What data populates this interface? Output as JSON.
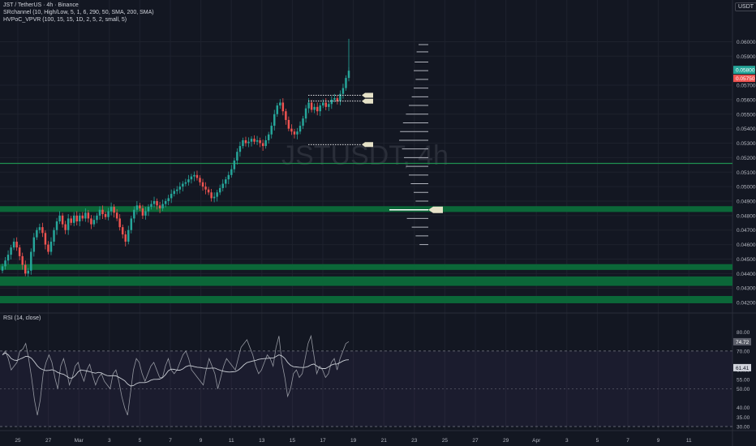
{
  "header": {
    "symbol_line": "JST / TetherUS · 4h · Binance",
    "indicator_1": "SRchannel (10, High/Low, 5, 1, 6, 290, 50, SMA, 200, SMA)",
    "indicator_2": "HVPoC_VPVR (100, 15, 15, 1D, 2, 5, 2, small, 5)"
  },
  "currency_badge": "USDT",
  "watermark": "JSTUSDT, 4h",
  "price_axis": {
    "labels": [
      "0.06000",
      "0.05900",
      "0.05700",
      "0.05600",
      "0.05500",
      "0.05400",
      "0.05300",
      "0.05200",
      "0.05100",
      "0.05000",
      "0.04900",
      "0.04800",
      "0.04700",
      "0.04600",
      "0.04500",
      "0.04400",
      "0.04300",
      "0.04200"
    ],
    "last_price_tag": "0.05800",
    "last_price_tag_2": "0.05750"
  },
  "rsi": {
    "label": "RSI (14, close)",
    "axis_labels": [
      "80.00",
      "70.00",
      "60.00",
      "55.00",
      "50.00",
      "40.00",
      "35.00",
      "30.00"
    ],
    "value_tag_1": "74.72",
    "value_tag_2": "61.41"
  },
  "time_axis": {
    "labels": [
      "25",
      "27",
      "Mar",
      "3",
      "5",
      "7",
      "9",
      "11",
      "13",
      "15",
      "17",
      "19",
      "21",
      "23",
      "25",
      "27",
      "29",
      "Apr",
      "3",
      "5",
      "7",
      "9",
      "11"
    ]
  },
  "colors": {
    "background": "#131722",
    "up_candle": "#26a69a",
    "down_candle": "#ef5350",
    "sr_zone": "#0b6b3a",
    "sr_line": "#1f8f4f",
    "rsi_line": "#9598a1",
    "rsi_ma": "#c9cdd4",
    "price_tag_up": "#26a69a",
    "price_tag_down": "#ef5350"
  },
  "chart_data": {
    "type": "candlestick",
    "price_range": [
      0.0415,
      0.0612
    ],
    "sr_zones": [
      [
        0.04825,
        0.04865
      ],
      [
        0.04425,
        0.04465
      ],
      [
        0.04315,
        0.0438
      ],
      [
        0.04195,
        0.04245
      ]
    ],
    "sr_lines": [
      0.0516
    ],
    "close_path": [
      0.0445,
      0.0449,
      0.0453,
      0.0458,
      0.0462,
      0.0458,
      0.0452,
      0.0446,
      0.044,
      0.0442,
      0.0455,
      0.0465,
      0.047,
      0.0472,
      0.0468,
      0.046,
      0.0455,
      0.0462,
      0.047,
      0.0476,
      0.048,
      0.0474,
      0.047,
      0.0478,
      0.0475,
      0.048,
      0.0476,
      0.048,
      0.0478,
      0.0482,
      0.0478,
      0.0474,
      0.0477,
      0.048,
      0.0484,
      0.0481,
      0.0479,
      0.0483,
      0.0486,
      0.0482,
      0.0478,
      0.0472,
      0.0467,
      0.0462,
      0.047,
      0.0478,
      0.0484,
      0.0487,
      0.0485,
      0.048,
      0.0483,
      0.0486,
      0.0488,
      0.049,
      0.0487,
      0.0485,
      0.0488,
      0.049,
      0.0492,
      0.0495,
      0.0497,
      0.0498,
      0.05,
      0.0502,
      0.0503,
      0.0505,
      0.0507,
      0.0508,
      0.0506,
      0.0503,
      0.05,
      0.0498,
      0.0496,
      0.0492,
      0.0493,
      0.0496,
      0.0499,
      0.0502,
      0.0505,
      0.0508,
      0.0512,
      0.0518,
      0.0524,
      0.0528,
      0.0532,
      0.053,
      0.0531,
      0.0533,
      0.0531,
      0.0532,
      0.053,
      0.0528,
      0.0532,
      0.0536,
      0.0542,
      0.055,
      0.0556,
      0.0558,
      0.0552,
      0.0546,
      0.054,
      0.0538,
      0.0536,
      0.0538,
      0.0542,
      0.0547,
      0.0554,
      0.0558,
      0.0553,
      0.0555,
      0.0552,
      0.0556,
      0.0558,
      0.0555,
      0.0557,
      0.056,
      0.0561,
      0.0559,
      0.0564,
      0.0568,
      0.0575,
      0.058
    ],
    "volume_profile_prices": [
      0.0598,
      0.0593,
      0.0586,
      0.058,
      0.0574,
      0.0568,
      0.0562,
      0.0556,
      0.055,
      0.0544,
      0.0538,
      0.0532,
      0.0526,
      0.052,
      0.0514,
      0.0508,
      0.0502,
      0.0496,
      0.049,
      0.0484,
      0.0478,
      0.0472,
      0.0466,
      0.046
    ],
    "volume_profile_values": [
      20,
      24,
      28,
      30,
      26,
      30,
      34,
      40,
      46,
      52,
      58,
      60,
      54,
      50,
      46,
      40,
      36,
      30,
      26,
      80,
      44,
      34,
      26,
      18
    ],
    "poc_price": 0.0484,
    "hvpoc_markers": [
      0.0563,
      0.0559,
      0.0529
    ],
    "rsi_range": [
      30,
      85
    ],
    "rsi_bands": [
      30,
      70
    ],
    "rsi_values": [
      68,
      70,
      66,
      60,
      62,
      64,
      70,
      71,
      74,
      66,
      56,
      44,
      36,
      44,
      58,
      64,
      68,
      64,
      56,
      50,
      62,
      66,
      60,
      52,
      56,
      62,
      64,
      58,
      54,
      60,
      63,
      57,
      52,
      56,
      58,
      54,
      52,
      50,
      58,
      60,
      54,
      46,
      40,
      36,
      48,
      60,
      66,
      64,
      58,
      54,
      58,
      62,
      64,
      60,
      56,
      56,
      62,
      66,
      60,
      58,
      60,
      64,
      68,
      70,
      66,
      60,
      58,
      56,
      54,
      52,
      60,
      66,
      62,
      58,
      50,
      56,
      62,
      66,
      64,
      62,
      60,
      66,
      72,
      74,
      76,
      72,
      68,
      62,
      58,
      60,
      64,
      68,
      66,
      62,
      72,
      78,
      64,
      56,
      46,
      50,
      58,
      60,
      56,
      58,
      66,
      74,
      78,
      68,
      58,
      62,
      60,
      56,
      58,
      64,
      66,
      60,
      66,
      70,
      74,
      75
    ]
  }
}
